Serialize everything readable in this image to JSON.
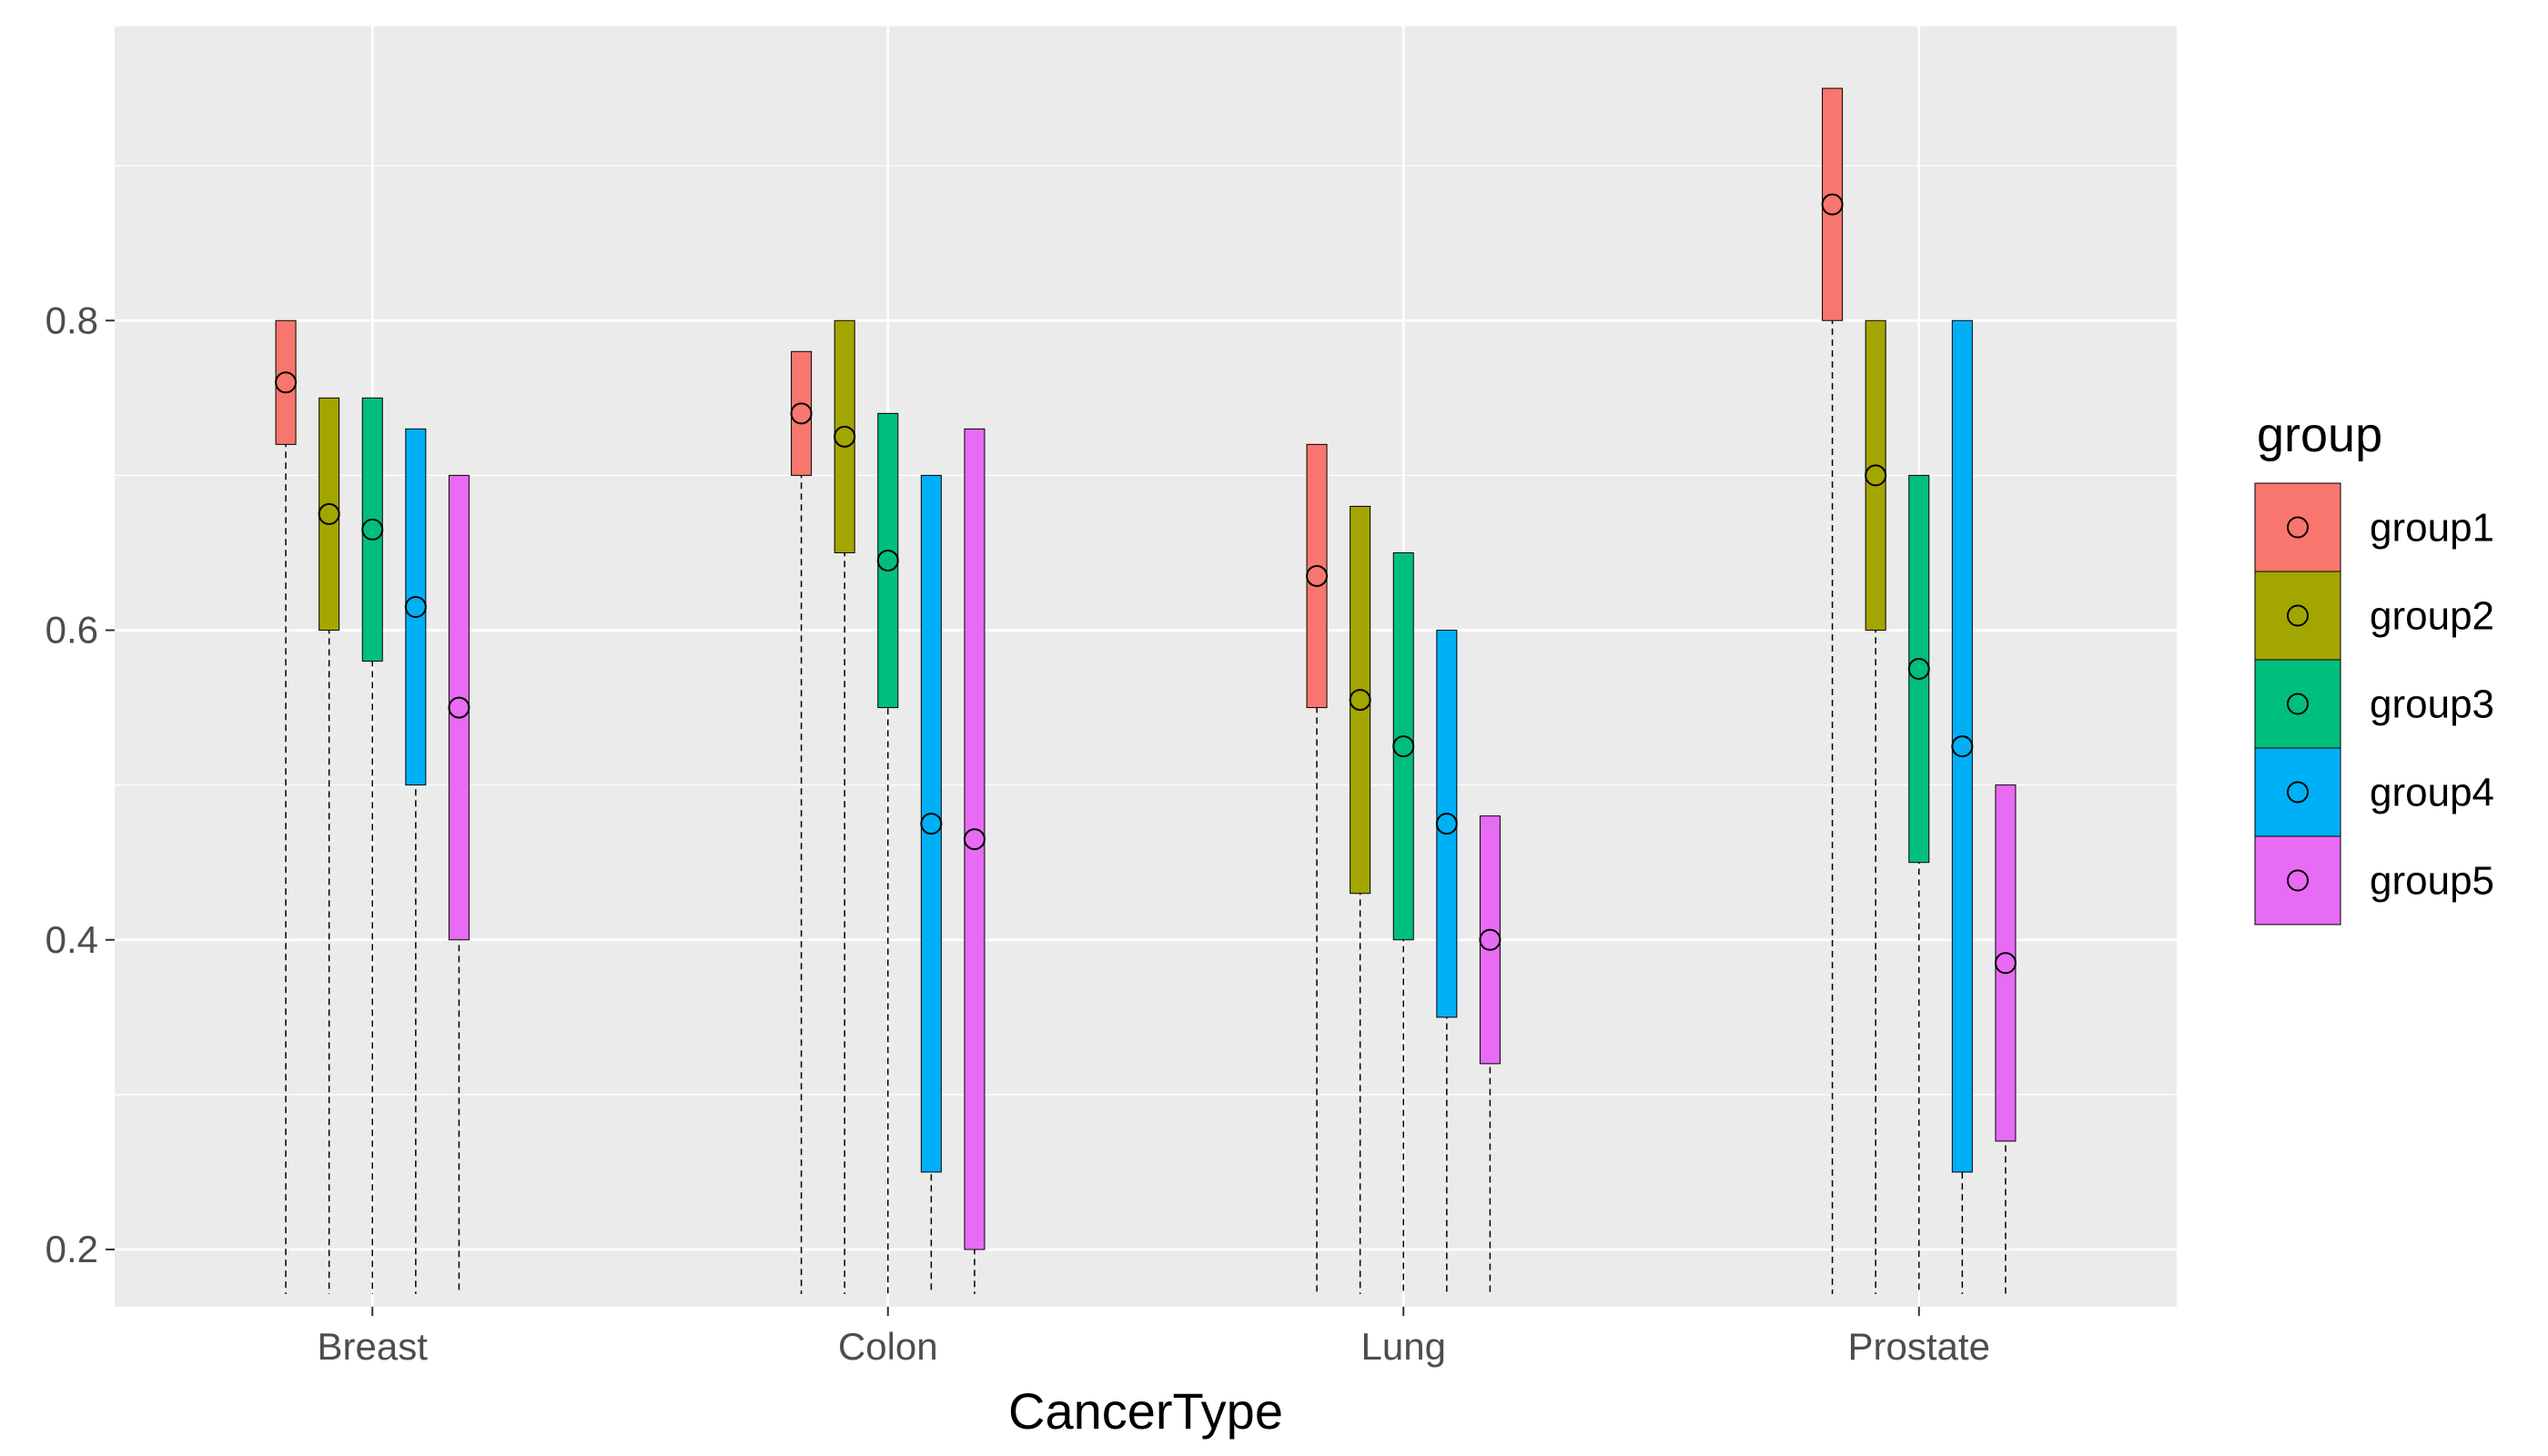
{
  "chart_data": {
    "type": "crossbar",
    "title": "",
    "xlabel": "CancerType",
    "ylabel": "",
    "ylim": [
      0.163,
      0.99
    ],
    "yticks": [
      0.2,
      0.4,
      0.6,
      0.8
    ],
    "ytick_labels": [
      "0.2",
      "0.4",
      "0.6",
      "0.8"
    ],
    "categories": [
      "Breast",
      "Colon",
      "Lung",
      "Prostate"
    ],
    "grid": true,
    "legend": {
      "title": "group",
      "position": "right"
    },
    "series": [
      {
        "name": "group1",
        "color": "#F8766D",
        "values": [
          0.76,
          0.74,
          0.635,
          0.875
        ],
        "lower": [
          0.72,
          0.7,
          0.55,
          0.8
        ],
        "upper": [
          0.8,
          0.78,
          0.72,
          0.95
        ]
      },
      {
        "name": "group2",
        "color": "#A3A500",
        "values": [
          0.675,
          0.725,
          0.555,
          0.7
        ],
        "lower": [
          0.6,
          0.65,
          0.43,
          0.6
        ],
        "upper": [
          0.75,
          0.8,
          0.68,
          0.8
        ]
      },
      {
        "name": "group3",
        "color": "#00BF7D",
        "values": [
          0.665,
          0.645,
          0.525,
          0.575
        ],
        "lower": [
          0.58,
          0.55,
          0.4,
          0.45
        ],
        "upper": [
          0.75,
          0.74,
          0.65,
          0.7
        ]
      },
      {
        "name": "group4",
        "color": "#00B0F6",
        "values": [
          0.615,
          0.475,
          0.475,
          0.525
        ],
        "lower": [
          0.5,
          0.25,
          0.35,
          0.25
        ],
        "upper": [
          0.73,
          0.7,
          0.6,
          0.8
        ]
      },
      {
        "name": "group5",
        "color": "#E76BF3",
        "values": [
          0.55,
          0.465,
          0.4,
          0.385
        ],
        "lower": [
          0.4,
          0.2,
          0.32,
          0.27
        ],
        "upper": [
          0.7,
          0.73,
          0.48,
          0.5
        ]
      }
    ]
  }
}
